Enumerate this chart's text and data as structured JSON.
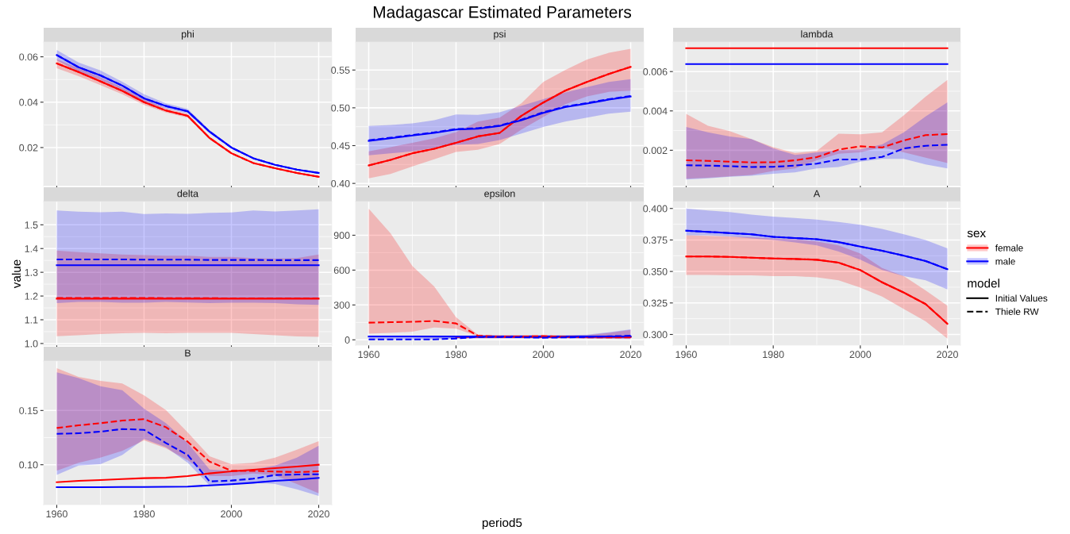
{
  "chart_data": [
    {
      "type": "line",
      "title": "phi",
      "annotations": [
        "Madagascar Estimated Parameters"
      ],
      "x": [
        1960,
        1965,
        1970,
        1975,
        1980,
        1985,
        1990,
        1995,
        2000,
        2005,
        2010,
        2015,
        2020
      ],
      "xlim": [
        1957,
        2023
      ],
      "xticks": [
        1960,
        1980,
        2000,
        2020
      ],
      "ylim": [
        0.0032,
        0.0665
      ],
      "yticks": [
        0.02,
        0.04,
        0.06
      ],
      "grid": true,
      "tick_labels": "y",
      "series": [
        {
          "color": "#ff0000",
          "line_style": "solid",
          "values": [
            0.0571,
            0.0533,
            0.0492,
            0.045,
            0.04,
            0.0363,
            0.034,
            0.0242,
            0.0175,
            0.0132,
            0.0109,
            0.0088,
            0.0071
          ]
        },
        {
          "color": "#0000ff",
          "line_style": "solid",
          "values": [
            0.0608,
            0.0554,
            0.0518,
            0.0473,
            0.0417,
            0.0383,
            0.036,
            0.027,
            0.02,
            0.0153,
            0.0124,
            0.0103,
            0.0088
          ]
        },
        {
          "color": "#ff0000",
          "line_style": "dashed",
          "values": [
            0.0571,
            0.0533,
            0.0492,
            0.045,
            0.04,
            0.0363,
            0.034,
            0.0242,
            0.0175,
            0.0132,
            0.0109,
            0.0088,
            0.0071
          ],
          "lower": [
            0.055,
            0.0515,
            0.0475,
            0.0435,
            0.0388,
            0.0355,
            0.0332,
            0.0236,
            0.0171,
            0.0129,
            0.0107,
            0.0086,
            0.0069
          ],
          "upper": [
            0.059,
            0.055,
            0.051,
            0.0465,
            0.0415,
            0.0372,
            0.0348,
            0.0248,
            0.0179,
            0.0135,
            0.0111,
            0.009,
            0.0073
          ]
        },
        {
          "color": "#0000ff",
          "line_style": "dashed",
          "values": [
            0.0608,
            0.0554,
            0.0518,
            0.0473,
            0.0417,
            0.0383,
            0.036,
            0.027,
            0.02,
            0.0153,
            0.0124,
            0.0103,
            0.0088
          ],
          "lower": [
            0.0585,
            0.0535,
            0.0498,
            0.0455,
            0.04,
            0.0372,
            0.035,
            0.0263,
            0.0196,
            0.015,
            0.0121,
            0.0101,
            0.0086
          ],
          "upper": [
            0.063,
            0.0575,
            0.054,
            0.049,
            0.0435,
            0.0395,
            0.037,
            0.0278,
            0.0205,
            0.0157,
            0.0127,
            0.0105,
            0.009
          ]
        }
      ]
    },
    {
      "type": "line",
      "title": "psi",
      "x": [
        1960,
        1965,
        1970,
        1975,
        1980,
        1985,
        1990,
        1995,
        2000,
        2005,
        2010,
        2015,
        2020
      ],
      "xlim": [
        1957,
        2023
      ],
      "xticks": [
        1960,
        1980,
        2000,
        2020
      ],
      "ylim": [
        0.397,
        0.587
      ],
      "yticks": [
        {
          "value": 0.4,
          "label": "0.40"
        },
        {
          "value": 0.45,
          "label": "0.45"
        },
        {
          "value": 0.5,
          "label": "0.50"
        },
        {
          "value": 0.55,
          "label": "0.55"
        }
      ],
      "grid": true,
      "tick_labels": "y",
      "series": [
        {
          "color": "#ff0000",
          "line_style": "solid",
          "values": [
            0.4238,
            0.4311,
            0.4399,
            0.4458,
            0.4538,
            0.4622,
            0.4668,
            0.4895,
            0.507,
            0.5227,
            0.5343,
            0.5448,
            0.5542
          ]
        },
        {
          "color": "#0000ff",
          "line_style": "solid",
          "values": [
            0.4563,
            0.4598,
            0.4633,
            0.4668,
            0.4713,
            0.4724,
            0.4759,
            0.4836,
            0.4934,
            0.501,
            0.5056,
            0.5108,
            0.515
          ]
        },
        {
          "color": "#ff0000",
          "line_style": "dashed",
          "values": [
            0.4238,
            0.4311,
            0.4399,
            0.4458,
            0.4538,
            0.4622,
            0.4668,
            0.4895,
            0.507,
            0.5227,
            0.5343,
            0.5448,
            0.5542
          ],
          "lower": [
            0.4066,
            0.4126,
            0.4224,
            0.4318,
            0.4416,
            0.4444,
            0.4521,
            0.4713,
            0.4878,
            0.5045,
            0.515,
            0.521,
            0.5227
          ],
          "upper": [
            0.4423,
            0.4479,
            0.4538,
            0.4598,
            0.4678,
            0.4818,
            0.4871,
            0.5063,
            0.5343,
            0.55,
            0.564,
            0.5727,
            0.578
          ]
        },
        {
          "color": "#0000ff",
          "line_style": "dashed",
          "values": [
            0.457,
            0.4605,
            0.464,
            0.4675,
            0.472,
            0.4731,
            0.4766,
            0.4843,
            0.4941,
            0.5017,
            0.5063,
            0.5115,
            0.5157
          ],
          "lower": [
            0.4371,
            0.4399,
            0.4423,
            0.4469,
            0.451,
            0.4521,
            0.4573,
            0.4661,
            0.4748,
            0.4818,
            0.4871,
            0.4923,
            0.4948
          ],
          "upper": [
            0.4759,
            0.4773,
            0.4794,
            0.4836,
            0.4913,
            0.4906,
            0.4941,
            0.5028,
            0.5115,
            0.5203,
            0.5273,
            0.5343,
            0.5378
          ]
        }
      ]
    },
    {
      "type": "line",
      "title": "lambda",
      "x": [
        1960,
        1965,
        1970,
        1975,
        1980,
        1985,
        1990,
        1995,
        2000,
        2005,
        2010,
        2015,
        2020
      ],
      "xlim": [
        1957,
        2023
      ],
      "xticks": [
        1960,
        1980,
        2000,
        2020
      ],
      "ylim": [
        0.0002,
        0.0075
      ],
      "yticks": [
        0.002,
        0.004,
        0.006
      ],
      "grid": true,
      "tick_labels": "y",
      "series": [
        {
          "color": "#ff0000",
          "line_style": "solid",
          "values": [
            0.00719,
            0.00719,
            0.00719,
            0.00719,
            0.00719,
            0.00719,
            0.00719,
            0.00719,
            0.00719,
            0.00719,
            0.00719,
            0.00719,
            0.00719
          ]
        },
        {
          "color": "#0000ff",
          "line_style": "solid",
          "values": [
            0.00638,
            0.00638,
            0.00638,
            0.00638,
            0.00638,
            0.00638,
            0.00638,
            0.00638,
            0.00638,
            0.00638,
            0.00638,
            0.00638,
            0.00638
          ]
        },
        {
          "color": "#ff0000",
          "line_style": "dashed",
          "values": [
            0.00149,
            0.00146,
            0.00142,
            0.00138,
            0.00139,
            0.00149,
            0.00165,
            0.00203,
            0.0022,
            0.00214,
            0.0025,
            0.00277,
            0.00282
          ],
          "lower": [
            0.00055,
            0.0006,
            0.00067,
            0.00074,
            0.00095,
            0.00108,
            0.00149,
            0.00182,
            0.00189,
            0.00216,
            0.00189,
            0.00162,
            0.00135
          ],
          "upper": [
            0.00385,
            0.00324,
            0.00297,
            0.00257,
            0.00216,
            0.00186,
            0.00196,
            0.00284,
            0.00281,
            0.00291,
            0.00378,
            0.00473,
            0.00557
          ]
        },
        {
          "color": "#0000ff",
          "line_style": "dashed",
          "values": [
            0.00124,
            0.00122,
            0.00119,
            0.00115,
            0.00116,
            0.00122,
            0.00132,
            0.00153,
            0.00153,
            0.00166,
            0.00209,
            0.00223,
            0.00228
          ],
          "lower": [
            0.00051,
            0.00057,
            0.00065,
            0.0007,
            0.00081,
            0.00088,
            0.00108,
            0.00115,
            0.00142,
            0.00156,
            0.00156,
            0.00128,
            0.00108
          ],
          "upper": [
            0.00318,
            0.00291,
            0.0027,
            0.00257,
            0.0021,
            0.00176,
            0.00189,
            0.002,
            0.00205,
            0.0023,
            0.00291,
            0.00372,
            0.00443
          ]
        }
      ]
    },
    {
      "type": "line",
      "title": "delta",
      "ylabel": "value",
      "x": [
        1960,
        1965,
        1970,
        1975,
        1980,
        1985,
        1990,
        1995,
        2000,
        2005,
        2010,
        2015,
        2020
      ],
      "xlim": [
        1957,
        2023
      ],
      "xticks": [
        1960,
        1980,
        2000,
        2020
      ],
      "ylim": [
        0.993,
        1.598
      ],
      "yticks": [
        {
          "value": 1,
          "label": "1.0"
        },
        1.1,
        1.2,
        1.3,
        1.4,
        1.5
      ],
      "grid": true,
      "tick_labels": "y",
      "series": [
        {
          "color": "#ff0000",
          "line_style": "solid",
          "values": [
            1.189,
            1.189,
            1.189,
            1.189,
            1.189,
            1.189,
            1.189,
            1.189,
            1.189,
            1.189,
            1.189,
            1.189,
            1.189
          ]
        },
        {
          "color": "#0000ff",
          "line_style": "solid",
          "values": [
            1.33,
            1.33,
            1.33,
            1.33,
            1.33,
            1.33,
            1.33,
            1.33,
            1.33,
            1.33,
            1.33,
            1.33,
            1.33
          ]
        },
        {
          "color": "#ff0000",
          "line_style": "dashed",
          "values": [
            1.192,
            1.192,
            1.192,
            1.192,
            1.192,
            1.191,
            1.191,
            1.191,
            1.19,
            1.19,
            1.19,
            1.19,
            1.19
          ],
          "lower": [
            1.031,
            1.035,
            1.04,
            1.043,
            1.045,
            1.043,
            1.045,
            1.045,
            1.045,
            1.04,
            1.035,
            1.03,
            1.028
          ],
          "upper": [
            1.392,
            1.385,
            1.38,
            1.375,
            1.372,
            1.37,
            1.37,
            1.365,
            1.365,
            1.36,
            1.358,
            1.36,
            1.375
          ]
        },
        {
          "color": "#0000ff",
          "line_style": "dashed",
          "values": [
            1.354,
            1.354,
            1.354,
            1.354,
            1.353,
            1.353,
            1.353,
            1.352,
            1.352,
            1.352,
            1.351,
            1.351,
            1.351
          ],
          "lower": [
            1.17,
            1.175,
            1.175,
            1.172,
            1.172,
            1.175,
            1.173,
            1.17,
            1.172,
            1.172,
            1.17,
            1.165,
            1.163
          ],
          "upper": [
            1.56,
            1.555,
            1.553,
            1.555,
            1.545,
            1.548,
            1.546,
            1.55,
            1.552,
            1.56,
            1.556,
            1.56,
            1.565
          ]
        }
      ]
    },
    {
      "type": "line",
      "title": "epsilon",
      "xlabel": "period5",
      "x": [
        1960,
        1965,
        1970,
        1975,
        1980,
        1985,
        1990,
        1995,
        2000,
        2005,
        2010,
        2015,
        2020
      ],
      "xlim": [
        1957,
        2023
      ],
      "xticks": [
        1960,
        1980,
        2000,
        2020
      ],
      "ylim": [
        -46,
        1190
      ],
      "yticks": [
        0,
        300,
        600,
        900
      ],
      "grid": true,
      "series": [
        {
          "color": "#ff0000",
          "line_style": "solid",
          "values": [
            null,
            null,
            null,
            null,
            25,
            25,
            25,
            25,
            25,
            25,
            25,
            25,
            25
          ]
        },
        {
          "color": "#0000ff",
          "line_style": "solid",
          "values": [
            28,
            28,
            28,
            28,
            28,
            28,
            28,
            28,
            28,
            28,
            28,
            28,
            28
          ]
        },
        {
          "color": "#ff0000",
          "line_style": "dashed",
          "values": [
            148,
            152,
            155,
            162,
            141,
            35,
            28,
            28,
            32,
            25,
            21,
            21,
            21
          ],
          "lower": [
            53,
            60,
            70,
            106,
            95,
            30,
            15,
            15,
            15,
            15,
            12,
            10,
            10
          ],
          "upper": [
            1129,
            917,
            635,
            459,
            194,
            45,
            40,
            40,
            40,
            38,
            40,
            60,
            85
          ]
        },
        {
          "color": "#0000ff",
          "line_style": "dashed",
          "values": [
            4,
            4,
            4,
            4,
            11,
            25,
            25,
            22,
            18,
            21,
            24,
            30,
            35
          ],
          "lower": [
            0,
            0,
            0,
            2,
            8,
            12,
            12,
            12,
            12,
            12,
            10,
            8,
            5
          ],
          "upper": [
            15,
            15,
            15,
            20,
            30,
            40,
            40,
            40,
            40,
            40,
            45,
            65,
            90
          ]
        }
      ]
    },
    {
      "type": "line",
      "title": "A",
      "legend": "right",
      "legend_title": "sex",
      "annotations": [
        "model",
        "Initial Values",
        "Thiele RW"
      ],
      "x": [
        1960,
        1965,
        1970,
        1975,
        1980,
        1985,
        1990,
        1995,
        2000,
        2005,
        2010,
        2015,
        2020
      ],
      "xlim": [
        1957,
        2023
      ],
      "xticks": [
        1960,
        1980,
        2000,
        2020
      ],
      "ylim": [
        0.2915,
        0.4055
      ],
      "yticks": [
        {
          "value": 0.3,
          "label": "0.300"
        },
        {
          "value": 0.325,
          "label": "0.325"
        },
        {
          "value": 0.35,
          "label": "0.350"
        },
        {
          "value": 0.375,
          "label": "0.375"
        },
        {
          "value": 0.4,
          "label": "0.400"
        }
      ],
      "grid": true,
      "series": [
        {
          "name": "female",
          "color": "#ff0000",
          "line_style": "solid",
          "values": [
            0.3619,
            0.3619,
            0.3616,
            0.3609,
            0.3603,
            0.3599,
            0.3593,
            0.357,
            0.3511,
            0.3414,
            0.3332,
            0.3241,
            0.3085
          ]
        },
        {
          "name": "male",
          "color": "#0000ff",
          "line_style": "solid",
          "values": [
            0.3824,
            0.3814,
            0.3805,
            0.3795,
            0.3775,
            0.3765,
            0.3756,
            0.3733,
            0.3697,
            0.3664,
            0.3625,
            0.3583,
            0.3518
          ]
        },
        {
          "color": "#ff0000",
          "line_style": "dashed",
          "values": [
            0.3619,
            0.3619,
            0.3616,
            0.3609,
            0.3603,
            0.3599,
            0.3593,
            0.357,
            0.3511,
            0.3414,
            0.3332,
            0.3241,
            0.3085
          ],
          "lower": [
            0.3472,
            0.3472,
            0.3469,
            0.3469,
            0.3463,
            0.3463,
            0.3453,
            0.343,
            0.3371,
            0.33,
            0.3202,
            0.3104,
            0.2967
          ],
          "upper": [
            0.3788,
            0.3782,
            0.3778,
            0.3772,
            0.3762,
            0.3756,
            0.3739,
            0.3707,
            0.3642,
            0.3528,
            0.3463,
            0.3349,
            0.3228
          ]
        },
        {
          "color": "#0000ff",
          "line_style": "dashed",
          "values": [
            0.3824,
            0.3814,
            0.3805,
            0.3795,
            0.3775,
            0.3765,
            0.3756,
            0.3733,
            0.3697,
            0.3664,
            0.3625,
            0.3583,
            0.3518
          ],
          "lower": [
            0.3788,
            0.3788,
            0.3778,
            0.3762,
            0.3749,
            0.373,
            0.3707,
            0.3658,
            0.3593,
            0.3511,
            0.3463,
            0.343,
            0.3358
          ],
          "upper": [
            0.4,
            0.3984,
            0.3971,
            0.3951,
            0.3935,
            0.3925,
            0.3912,
            0.3893,
            0.387,
            0.3837,
            0.3795,
            0.3749,
            0.3684
          ]
        }
      ]
    },
    {
      "type": "line",
      "title": "B",
      "x": [
        1960,
        1965,
        1970,
        1975,
        1980,
        1985,
        1990,
        1995,
        2000,
        2005,
        2010,
        2015,
        2020
      ],
      "xlim": [
        1957,
        2023
      ],
      "xticks": [
        1960,
        1980,
        2000,
        2020
      ],
      "ylim": [
        0.0632,
        0.1956
      ],
      "yticks": [
        {
          "value": 0.1,
          "label": "0.10"
        },
        0.15
      ],
      "grid": true,
      "series": [
        {
          "color": "#ff0000",
          "line_style": "solid",
          "values": [
            0.0839,
            0.0851,
            0.0859,
            0.0868,
            0.0876,
            0.088,
            0.0895,
            0.092,
            0.0939,
            0.0954,
            0.0968,
            0.0983,
            0.1
          ]
        },
        {
          "color": "#0000ff",
          "line_style": "solid",
          "values": [
            0.0793,
            0.0793,
            0.0793,
            0.0795,
            0.0795,
            0.0796,
            0.0798,
            0.081,
            0.082,
            0.0834,
            0.0851,
            0.0863,
            0.0878
          ]
        },
        {
          "color": "#ff0000",
          "line_style": "dashed",
          "values": [
            0.1339,
            0.1363,
            0.1383,
            0.1407,
            0.142,
            0.1346,
            0.1212,
            0.1029,
            0.0944,
            0.0944,
            0.0937,
            0.0932,
            0.0939
          ],
          "lower": [
            0.0944,
            0.1017,
            0.1066,
            0.1127,
            0.1224,
            0.1151,
            0.1041,
            0.0895,
            0.0895,
            0.092,
            0.09,
            0.0822,
            0.0737
          ],
          "upper": [
            0.189,
            0.181,
            0.1773,
            0.1749,
            0.1639,
            0.1505,
            0.1298,
            0.1078,
            0.1005,
            0.1017,
            0.1066,
            0.1139,
            0.1217
          ]
        },
        {
          "color": "#0000ff",
          "line_style": "dashed",
          "values": [
            0.1285,
            0.129,
            0.1305,
            0.1329,
            0.1322,
            0.12,
            0.109,
            0.0846,
            0.0854,
            0.0871,
            0.0905,
            0.091,
            0.0912
          ],
          "lower": [
            0.0907,
            0.0993,
            0.1005,
            0.109,
            0.1237,
            0.1163,
            0.1017,
            0.081,
            0.0822,
            0.0834,
            0.0822,
            0.0773,
            0.0712
          ],
          "upper": [
            0.1851,
            0.1798,
            0.1724,
            0.1688,
            0.1517,
            0.1383,
            0.12,
            0.0956,
            0.0944,
            0.0956,
            0.0993,
            0.1066,
            0.1176
          ]
        }
      ]
    }
  ]
}
